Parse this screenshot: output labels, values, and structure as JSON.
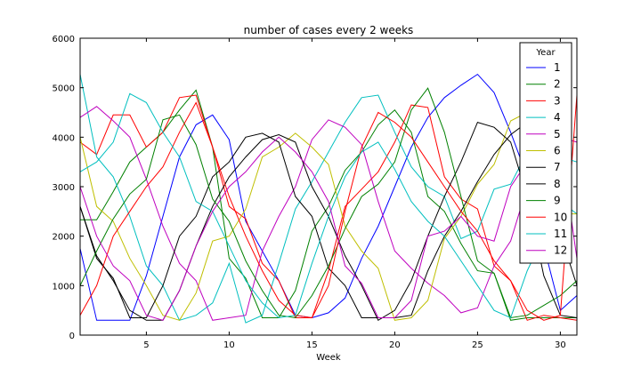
{
  "chart_data": {
    "type": "line",
    "title": "number of cases every 2 weeks",
    "xlabel": "Week",
    "ylabel": "",
    "xlim": [
      1,
      31
    ],
    "ylim": [
      0,
      6000
    ],
    "xticks": [
      5,
      10,
      15,
      20,
      25,
      30
    ],
    "yticks": [
      0,
      1000,
      2000,
      3000,
      4000,
      5000,
      6000
    ],
    "grid": false,
    "legend": {
      "title": "Year",
      "position": "top-right"
    },
    "colors": [
      "#0000ff",
      "#008000",
      "#ff0000",
      "#00bfbf",
      "#bf00bf",
      "#bfbf00",
      "#000000",
      "#000000",
      "#008000",
      "#ff0000",
      "#00bfbf",
      "#bf00bf"
    ],
    "x": [
      1,
      2,
      3,
      4,
      5,
      6,
      7,
      8,
      9,
      10,
      11,
      12,
      13,
      14,
      15,
      16,
      17,
      18,
      19,
      20,
      21,
      22,
      23,
      24,
      25,
      26,
      27,
      28,
      29,
      30,
      31
    ],
    "series": [
      {
        "name": "1",
        "values": [
          1750,
          300,
          300,
          300,
          1200,
          2400,
          3600,
          4250,
          4450,
          3950,
          2300,
          1700,
          1100,
          400,
          350,
          450,
          750,
          1550,
          2200,
          3000,
          3800,
          4400,
          4800,
          5050,
          5270,
          4900,
          4100,
          3200,
          1800,
          500,
          800
        ]
      },
      {
        "name": "2",
        "values": [
          2330,
          2330,
          2900,
          3500,
          3800,
          4100,
          4550,
          4950,
          3800,
          1550,
          1150,
          350,
          350,
          900,
          2100,
          2600,
          3330,
          3700,
          4250,
          4550,
          4100,
          2800,
          2500,
          1850,
          1300,
          1250,
          300,
          350,
          350,
          350,
          350
        ]
      },
      {
        "name": "3",
        "values": [
          3900,
          3650,
          4450,
          4450,
          3800,
          4100,
          4800,
          4850,
          3800,
          2600,
          2350,
          1450,
          1100,
          350,
          350,
          1300,
          2600,
          2950,
          3300,
          3900,
          4650,
          4600,
          3200,
          2750,
          2550,
          1400,
          1100,
          300,
          400,
          350,
          300
        ]
      },
      {
        "name": "4",
        "values": [
          5270,
          3600,
          3200,
          2400,
          1400,
          1000,
          300,
          400,
          650,
          1450,
          250,
          400,
          1450,
          2550,
          3100,
          3700,
          4300,
          4800,
          4850,
          4100,
          3400,
          3000,
          2800,
          1950,
          2100,
          2950,
          3050,
          3700,
          3400,
          2700,
          2450
        ]
      },
      {
        "name": "5",
        "values": [
          4400,
          4620,
          4330,
          4000,
          3150,
          2200,
          1450,
          1100,
          300,
          350,
          400,
          1700,
          2400,
          3000,
          3950,
          4350,
          4200,
          3850,
          2700,
          1700,
          1350,
          1050,
          800,
          450,
          550,
          1400,
          1900,
          3000,
          4000,
          4000,
          3900
        ]
      },
      {
        "name": "6",
        "values": [
          4000,
          2600,
          2300,
          1550,
          1000,
          400,
          300,
          850,
          1900,
          2000,
          2550,
          3600,
          3800,
          4080,
          3800,
          3450,
          2200,
          1700,
          1350,
          300,
          350,
          700,
          1950,
          2400,
          3050,
          3450,
          4330,
          4500,
          3650,
          2450,
          2450
        ]
      },
      {
        "name": "7",
        "values": [
          2600,
          1550,
          1150,
          350,
          350,
          1000,
          2000,
          2400,
          3200,
          3500,
          4000,
          4080,
          3900,
          2800,
          2400,
          1350,
          1000,
          350,
          350,
          350,
          400,
          1300,
          2000,
          2500,
          3100,
          3650,
          4050,
          4300,
          3050,
          2050,
          1000
        ]
      },
      {
        "name": "8",
        "values": [
          2600,
          1600,
          1100,
          500,
          300,
          300,
          900,
          1800,
          2600,
          3200,
          3600,
          3950,
          4050,
          3900,
          3000,
          2400,
          1600,
          1000,
          300,
          500,
          1100,
          2000,
          2800,
          3500,
          4300,
          4200,
          3900,
          2800,
          1200,
          400,
          350
        ]
      },
      {
        "name": "9",
        "values": [
          1000,
          1700,
          2350,
          2850,
          3150,
          4350,
          4450,
          3850,
          2750,
          2300,
          1500,
          900,
          400,
          350,
          800,
          1400,
          2150,
          2800,
          3050,
          3500,
          4550,
          4990,
          4100,
          2800,
          1500,
          1250,
          350,
          400,
          600,
          800,
          1100
        ]
      },
      {
        "name": "10",
        "values": [
          400,
          1000,
          2000,
          2500,
          3000,
          3400,
          4100,
          4700,
          3800,
          2800,
          2000,
          1300,
          700,
          400,
          350,
          1000,
          2500,
          3800,
          4500,
          4300,
          4000,
          3500,
          3000,
          2500,
          2100,
          1500,
          1100,
          500,
          300,
          400,
          4850
        ]
      },
      {
        "name": "11",
        "values": [
          3300,
          3500,
          3900,
          4880,
          4700,
          4100,
          3600,
          2700,
          2500,
          1800,
          1100,
          650,
          350,
          400,
          1450,
          2400,
          3200,
          3700,
          3900,
          3350,
          2700,
          2300,
          2000,
          1500,
          1000,
          500,
          350,
          1300,
          2000,
          3600,
          3500
        ]
      },
      {
        "name": "12",
        "values": [
          3000,
          2000,
          1400,
          1100,
          400,
          300,
          900,
          1800,
          2500,
          3000,
          3300,
          3700,
          4000,
          3700,
          3300,
          2700,
          1400,
          1050,
          350,
          350,
          700,
          2000,
          2100,
          2400,
          2000,
          1900,
          3000,
          3500,
          3700,
          3900,
          1550
        ]
      }
    ]
  }
}
